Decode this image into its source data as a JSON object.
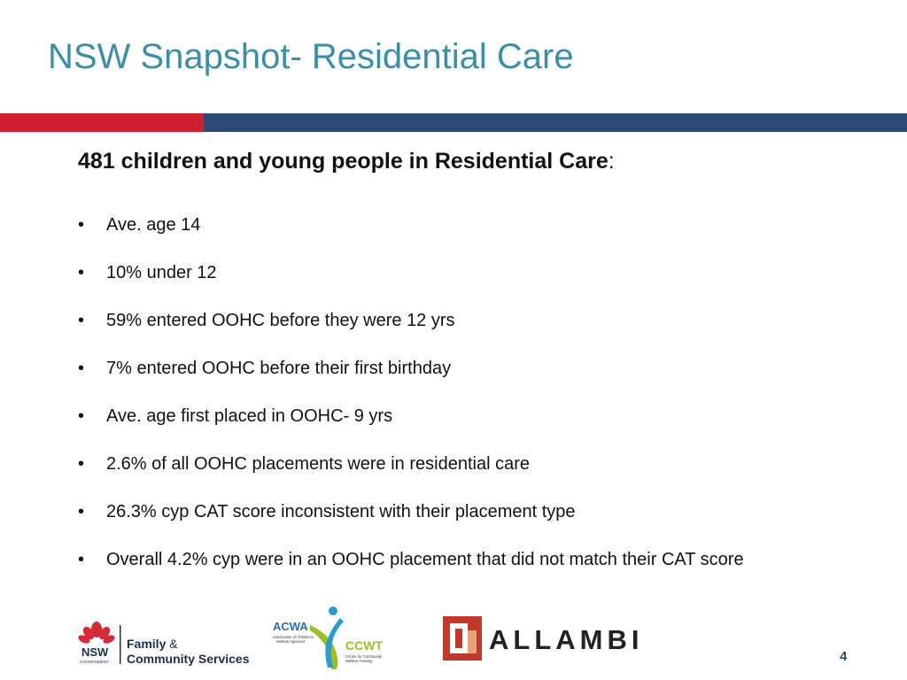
{
  "slide": {
    "title": "NSW Snapshot- Residential Care",
    "heading": "481 children and young people in Residential Care",
    "heading_suffix": ":",
    "bullet_glyph": "•",
    "bullets": [
      "Ave. age 14",
      "10% under 12",
      "59% entered OOHC before they were 12 yrs",
      "7% entered OOHC before their first birthday",
      "Ave. age first placed in OOHC- 9 yrs",
      "2.6% of all OOHC placements were in residential care",
      "26.3% cyp CAT score inconsistent with their placement type",
      "Overall 4.2% cyp were in an OOHC placement that did not match their CAT score"
    ],
    "page_number": "4"
  },
  "logos": {
    "nsw": {
      "icon": "waratah-icon",
      "name": "NSW",
      "sub": "GOVERNMENT",
      "line1": "Family",
      "amp": "&",
      "line2": "Community Services"
    },
    "acwa": {
      "name": "ACWA",
      "sub1": "Association of Children's",
      "sub2": "Welfare Agencies",
      "ccwt": "CCWT",
      "ccwt_sub1": "Centre for Community",
      "ccwt_sub2": "Welfare Training"
    },
    "allambi": {
      "name": "ALLAMBI"
    }
  },
  "colors": {
    "title": "#3b8ea5",
    "band_red": "#cc1f2f",
    "band_blue": "#2e4a74",
    "allambi_red": "#c0392b",
    "allambi_dark": "#222222"
  }
}
